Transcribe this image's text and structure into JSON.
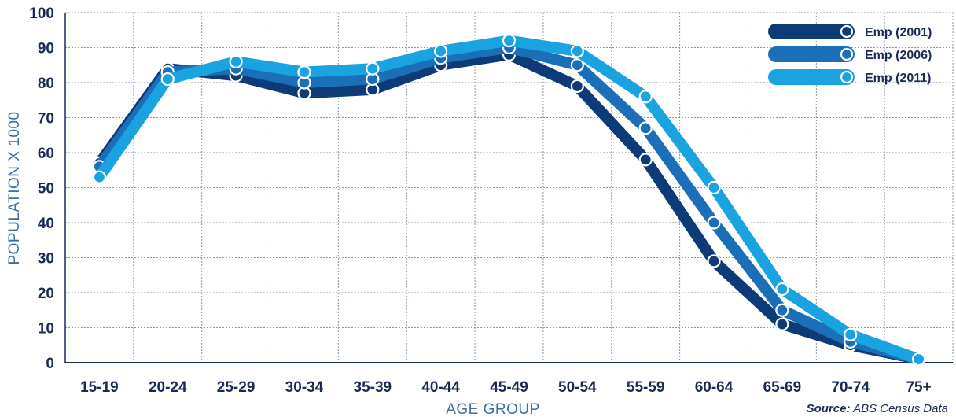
{
  "chart_data": {
    "type": "line",
    "categories": [
      "15-19",
      "20-24",
      "25-29",
      "30-34",
      "35-39",
      "40-44",
      "45-49",
      "50-54",
      "55-59",
      "60-64",
      "65-69",
      "70-74",
      "75+"
    ],
    "xlabel": "AGE GROUP",
    "ylabel": "POPULATION X 1000",
    "ylim": [
      0,
      100
    ],
    "yticks": [
      0,
      10,
      20,
      30,
      40,
      50,
      60,
      70,
      80,
      90,
      100
    ],
    "grid": true,
    "legend_position": "top-right",
    "series": [
      {
        "name": "Emp (2001)",
        "color": "#0d3b78",
        "values": [
          57,
          84,
          82,
          77,
          78,
          85,
          88,
          79,
          58,
          29,
          11,
          5,
          1
        ]
      },
      {
        "name": "Emp (2006)",
        "color": "#1a6fb8",
        "values": [
          56,
          83,
          84,
          80,
          81,
          87,
          90,
          85,
          67,
          40,
          15,
          6,
          1
        ]
      },
      {
        "name": "Emp (2011)",
        "color": "#1aa3e1",
        "values": [
          53,
          81,
          86,
          83,
          84,
          89,
          92,
          89,
          76,
          50,
          21,
          8,
          1
        ]
      }
    ]
  },
  "source": {
    "label": "Source:",
    "text": " ABS Census Data"
  }
}
